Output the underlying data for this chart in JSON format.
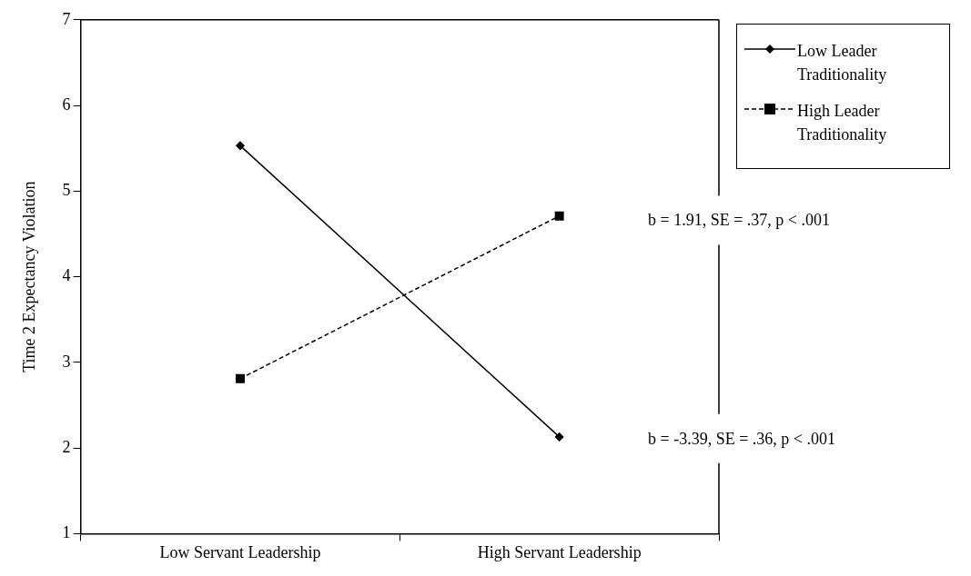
{
  "chart_data": {
    "type": "line",
    "ylabel": "Time 2 Expectancy Violation",
    "categories": [
      "Low Servant Leadership",
      "High Servant Leadership"
    ],
    "series": [
      {
        "name": "Low Leader Traditionality",
        "color": "#000000",
        "values": [
          5.53,
          2.13
        ],
        "marker": "diamond",
        "line_style": "solid"
      },
      {
        "name": "High Leader Traditionality",
        "color": "#000000",
        "values": [
          2.81,
          4.71
        ],
        "marker": "square",
        "line_style": "dashed"
      }
    ],
    "ylim": [
      1,
      7
    ],
    "yticks": [
      1,
      2,
      3,
      4,
      5,
      6,
      7
    ],
    "grid": false,
    "legend": "top right",
    "annotations": [
      "b = 1.91, SE = .37, p < .001",
      "b = -3.39, SE = .36, p < .001"
    ]
  }
}
